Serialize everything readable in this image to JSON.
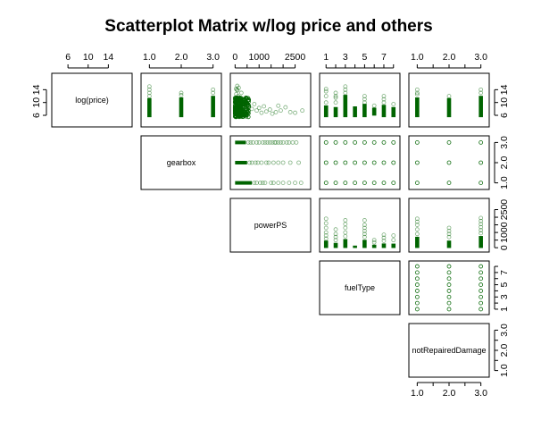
{
  "chart_data": {
    "type": "scatter",
    "title": "Scatterplot Matrix w/log price and others",
    "layout": "upper-triangle",
    "point_color": "#006400",
    "variables": [
      {
        "name": "log(price)",
        "range": [
          3.5,
          18.0
        ],
        "ticks": [
          6,
          10,
          14
        ],
        "tick_side": "left"
      },
      {
        "name": "gearbox",
        "range": [
          0.85,
          3.15
        ],
        "ticks": [
          1.0,
          2.0,
          3.0
        ],
        "tick_labels": [
          "1.0",
          "2.0",
          "3.0"
        ],
        "tick_side": "right"
      },
      {
        "name": "powerPS",
        "range": [
          -50,
          3000
        ],
        "ticks": [
          0,
          500,
          1000,
          1500,
          2000,
          2500
        ],
        "tick_labels": [
          "0",
          "",
          "1000",
          "",
          "",
          "2500"
        ],
        "tick_side": "left"
      },
      {
        "name": "fuelType",
        "range": [
          0.7,
          8.3
        ],
        "ticks": [
          1,
          2,
          3,
          4,
          5,
          6,
          7,
          8
        ],
        "tick_labels": [
          "1",
          "",
          "3",
          "",
          "5",
          "",
          "7",
          ""
        ],
        "tick_side": "right"
      },
      {
        "name": "notRepairedDamage",
        "range": [
          0.85,
          3.15
        ],
        "ticks": [
          1.0,
          1.5,
          2.0,
          2.5,
          3.0
        ],
        "tick_labels": [
          "1.0",
          "",
          "2.0",
          "",
          "3.0"
        ],
        "tick_side": "right"
      }
    ],
    "top_axis_vars": [
      0,
      1,
      2,
      3,
      4
    ],
    "bottom_axis_vars": [
      4
    ],
    "left_axis_vars": [
      0
    ],
    "right_axis_vars": [
      0,
      1,
      2,
      3,
      4
    ],
    "panels": [
      {
        "row": 0,
        "col": 1,
        "shape": "strips",
        "strips": [
          {
            "x": 1,
            "y_low": 5.5,
            "y_high": 11.3,
            "outliers": [
              12.0,
              13.0,
              14.0,
              15.0
            ]
          },
          {
            "x": 2,
            "y_low": 5.5,
            "y_high": 11.5,
            "outliers": [
              12.3,
              13.0
            ]
          },
          {
            "x": 3,
            "y_low": 5.5,
            "y_high": 12.0,
            "outliers": [
              13.0,
              14.0
            ]
          }
        ]
      },
      {
        "row": 0,
        "col": 2,
        "shape": "cloud",
        "cloud": {
          "x_min": 0,
          "x_max": 600,
          "y_min": 5.5,
          "y_max": 11.5,
          "density": 260
        },
        "points": [
          [
            40,
            14.3
          ],
          [
            70,
            14.0
          ],
          [
            100,
            13.8
          ],
          [
            150,
            14.6
          ],
          [
            50,
            12.6
          ],
          [
            120,
            12.0
          ],
          [
            260,
            13.0
          ],
          [
            90,
            15.2
          ],
          [
            700,
            8.0
          ],
          [
            800,
            9.5
          ],
          [
            900,
            7.5
          ],
          [
            1000,
            8.3
          ],
          [
            1100,
            6.8
          ],
          [
            1200,
            8.8
          ],
          [
            1300,
            7.2
          ],
          [
            1450,
            7.8
          ],
          [
            1550,
            6.5
          ],
          [
            1700,
            7.0
          ],
          [
            1800,
            9.0
          ],
          [
            1900,
            7.5
          ],
          [
            2100,
            8.5
          ],
          [
            2300,
            7.0
          ],
          [
            2500,
            6.8
          ],
          [
            2800,
            7.5
          ]
        ]
      },
      {
        "row": 0,
        "col": 3,
        "shape": "strips",
        "strips": [
          {
            "x": 1,
            "y_low": 5.5,
            "y_high": 9.0,
            "outliers": [
              10.0,
              12.0,
              13.5,
              14.2
            ]
          },
          {
            "x": 2,
            "y_low": 5.5,
            "y_high": 8.5,
            "outliers": [
              10.0,
              11.5,
              12.0,
              13.0
            ]
          },
          {
            "x": 3,
            "y_low": 5.5,
            "y_high": 12.3,
            "outliers": [
              13.0,
              14.0,
              15.0
            ]
          },
          {
            "x": 4,
            "y_low": 5.5,
            "y_high": 8.7,
            "outliers": []
          },
          {
            "x": 5,
            "y_low": 5.5,
            "y_high": 9.5,
            "outliers": [
              10.0,
              11.0,
              12.0
            ]
          },
          {
            "x": 6,
            "y_low": 6.0,
            "y_high": 8.3,
            "outliers": [
              9.0
            ]
          },
          {
            "x": 7,
            "y_low": 5.5,
            "y_high": 9.2,
            "outliers": [
              10.0,
              11.0,
              12.0
            ]
          },
          {
            "x": 8,
            "y_low": 5.5,
            "y_high": 8.5,
            "outliers": [
              9.5
            ]
          }
        ]
      },
      {
        "row": 0,
        "col": 4,
        "shape": "strips",
        "strips": [
          {
            "x": 1,
            "y_low": 5.5,
            "y_high": 11.5,
            "outliers": [
              12.5,
              13.0,
              14.0
            ]
          },
          {
            "x": 2,
            "y_low": 5.5,
            "y_high": 11.3,
            "outliers": [
              12.0
            ]
          },
          {
            "x": 3,
            "y_low": 5.5,
            "y_high": 12.0,
            "outliers": [
              13.0,
              14.0
            ]
          }
        ]
      },
      {
        "row": 1,
        "col": 2,
        "shape": "hrows",
        "hrows": [
          {
            "y": 1,
            "x_dense_max": 700,
            "sparse": [
              800,
              900,
              1050,
              1150,
              1250,
              1500,
              1600,
              1800,
              2000,
              2250,
              2500,
              2750
            ]
          },
          {
            "y": 2,
            "x_dense_max": 500,
            "sparse": [
              600,
              700,
              850,
              950,
              1100,
              1300,
              1400,
              1600,
              1800,
              2000,
              2300,
              2650
            ]
          },
          {
            "y": 3,
            "x_dense_max": 450,
            "sparse": [
              550,
              650,
              750,
              900,
              1000,
              1150,
              1250,
              1350,
              1450,
              1550,
              1650,
              1700,
              1800,
              1900,
              2000,
              2150,
              2250,
              2400,
              2550
            ]
          }
        ]
      },
      {
        "row": 1,
        "col": 3,
        "shape": "grid",
        "grid_x": [
          1,
          2,
          3,
          4,
          5,
          6,
          7,
          8
        ],
        "grid_y": [
          1,
          2,
          3
        ]
      },
      {
        "row": 1,
        "col": 4,
        "shape": "grid",
        "grid_x": [
          1,
          2,
          3
        ],
        "grid_y": [
          1,
          2,
          3
        ]
      },
      {
        "row": 2,
        "col": 3,
        "shape": "strips",
        "strips": [
          {
            "x": 1,
            "y_low": 0,
            "y_high": 450,
            "outliers": [
              600,
              800,
              1000,
              1300,
              1600,
              1900
            ]
          },
          {
            "x": 2,
            "y_low": 0,
            "y_high": 300,
            "outliers": [
              500,
              700,
              900,
              1200
            ]
          },
          {
            "x": 3,
            "y_low": 0,
            "y_high": 550,
            "outliers": [
              750,
              1000,
              1300,
              1550,
              1800
            ]
          },
          {
            "x": 4,
            "y_low": 0,
            "y_high": 120,
            "outliers": []
          },
          {
            "x": 5,
            "y_low": 0,
            "y_high": 500,
            "outliers": [
              700,
              900,
              1100,
              1300,
              1500,
              1800
            ]
          },
          {
            "x": 6,
            "y_low": 0,
            "y_high": 180,
            "outliers": [
              350,
              500
            ]
          },
          {
            "x": 7,
            "y_low": 0,
            "y_high": 260,
            "outliers": [
              450,
              650,
              850
            ]
          },
          {
            "x": 8,
            "y_low": 0,
            "y_high": 250,
            "outliers": [
              500,
              800
            ]
          }
        ]
      },
      {
        "row": 2,
        "col": 4,
        "shape": "strips",
        "strips": [
          {
            "x": 1,
            "y_low": 0,
            "y_high": 700,
            "outliers": [
              900,
              1200,
              1500,
              1700,
              1900
            ]
          },
          {
            "x": 2,
            "y_low": 0,
            "y_high": 450,
            "outliers": [
              700,
              900,
              1100,
              1300
            ]
          },
          {
            "x": 3,
            "y_low": 0,
            "y_high": 750,
            "outliers": [
              950,
              1150,
              1350,
              1550,
              1750,
              1950
            ]
          }
        ]
      },
      {
        "row": 3,
        "col": 4,
        "shape": "grid",
        "grid_x": [
          1,
          2,
          3
        ],
        "grid_y": [
          1,
          2,
          3,
          4,
          5,
          6,
          7,
          8
        ],
        "grid_y_by_x": {
          "1": [
            1,
            2,
            3,
            4,
            5,
            6,
            7,
            8
          ],
          "2": [
            1,
            2,
            3,
            4,
            5,
            6,
            7,
            8
          ],
          "3": [
            1,
            2,
            3,
            4,
            5,
            6,
            7,
            8
          ]
        }
      }
    ]
  }
}
